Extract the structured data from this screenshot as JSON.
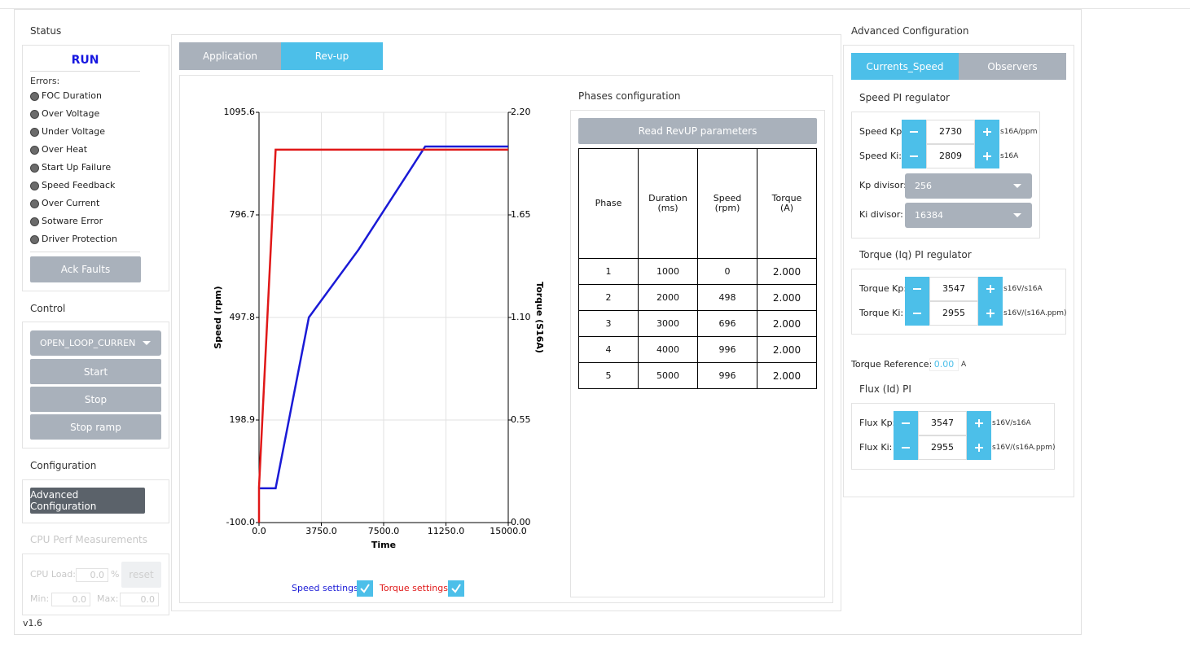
{
  "status": {
    "title": "Status",
    "state": "RUN",
    "errors_label": "Errors:",
    "errors": [
      "FOC Duration",
      "Over Voltage",
      "Under Voltage",
      "Over Heat",
      "Start Up Failure",
      "Speed Feedback",
      "Over Current",
      "Sotware Error",
      "Driver Protection"
    ],
    "ack": "Ack Faults"
  },
  "control": {
    "title": "Control",
    "mode": "OPEN_LOOP_CURREN",
    "buttons": [
      "Start",
      "Stop",
      "Stop ramp"
    ]
  },
  "configuration": {
    "title": "Configuration",
    "button": "Advanced Configuration"
  },
  "cpu": {
    "title": "CPU Perf Measurements",
    "load_label": "CPU Load:",
    "load": "0.0",
    "load_unit": "%",
    "reset": "reset",
    "min_label": "Min:",
    "min": "0.0",
    "max_label": "Max:",
    "max": "0.0"
  },
  "version": "v1.6",
  "tabs": [
    "Application",
    "Rev-up"
  ],
  "chart": {
    "type": "line",
    "xlabel": "Time",
    "ylabel": "Speed (rpm)",
    "y2label": "Torque (S16A)",
    "xlim": [
      0,
      15000
    ],
    "xticks": [
      {
        "value": 0,
        "label": "0.0"
      },
      {
        "value": 3750,
        "label": "3750.0"
      },
      {
        "value": 7500,
        "label": "7500.0"
      },
      {
        "value": 11250,
        "label": "11250.0"
      },
      {
        "value": 15000,
        "label": "15000.0"
      }
    ],
    "ylim": [
      -100,
      1095.6
    ],
    "yticks": [
      {
        "value": -100,
        "label": "-100.0"
      },
      198.9,
      497.8,
      796.7,
      1095.6
    ],
    "y2lim": [
      0,
      2.2
    ],
    "y2ticks": [
      {
        "value": 0,
        "label": "0.00"
      },
      0.55,
      {
        "value": 1.1,
        "label": "1.10"
      },
      1.65,
      {
        "value": 2.2,
        "label": "2.20"
      }
    ],
    "grid": true,
    "series": [
      {
        "name": "Speed settings",
        "color": "#1a1ad6",
        "axis": "y",
        "x": [
          0,
          1000,
          3000,
          6000,
          10000,
          15000
        ],
        "values": [
          0,
          0,
          498,
          696,
          996,
          996
        ]
      },
      {
        "name": "Torque settings",
        "color": "#e01818",
        "axis": "y2",
        "x": [
          0,
          0,
          1000,
          15000
        ],
        "values": [
          0,
          0.19,
          2,
          2
        ]
      }
    ]
  },
  "phases": {
    "title": "Phases configuration",
    "read": "Read RevUP parameters",
    "headers": [
      [
        "Phase"
      ],
      [
        "Duration",
        "(ms)"
      ],
      [
        "Speed",
        "(rpm)"
      ],
      [
        "Torque",
        "(A)"
      ]
    ],
    "rows": [
      [
        1,
        1000,
        0,
        "2.000"
      ],
      [
        2,
        2000,
        498,
        "2.000"
      ],
      [
        3,
        3000,
        696,
        "2.000"
      ],
      [
        4,
        4000,
        996,
        "2.000"
      ],
      [
        5,
        5000,
        996,
        "2.000"
      ]
    ]
  },
  "advanced": {
    "title": "Advanced Configuration",
    "tabs": [
      "Currents_Speed",
      "Observers"
    ],
    "speed_pi": {
      "title": "Speed PI regulator",
      "rows": [
        {
          "label": "Speed Kp:",
          "value": 2730,
          "unit": "s16A/ppm"
        },
        {
          "label": "Speed Ki:",
          "value": 2809,
          "unit": "s16A"
        }
      ],
      "divisors": [
        {
          "label": "Kp divisor:",
          "value": "256"
        },
        {
          "label": "Ki divisor:",
          "value": "16384"
        }
      ]
    },
    "torque_pi": {
      "title": "Torque (Iq) PI regulator",
      "rows": [
        {
          "label": "Torque Kp:",
          "value": 3547,
          "unit": "s16V/s16A"
        },
        {
          "label": "Torque Ki:",
          "value": 2955,
          "unit": "s16V/(s16A.ppm)"
        }
      ]
    },
    "torque_ref": {
      "label": "Torque Reference:",
      "value": "0.00",
      "unit": "A"
    },
    "flux_pi": {
      "title": "Flux (Id) PI",
      "rows": [
        {
          "label": "Flux Kp:",
          "value": 3547,
          "unit": "s16V/s16A"
        },
        {
          "label": "Flux Ki:",
          "value": 2955,
          "unit": "s16V/(s16A.ppm)"
        }
      ]
    }
  }
}
